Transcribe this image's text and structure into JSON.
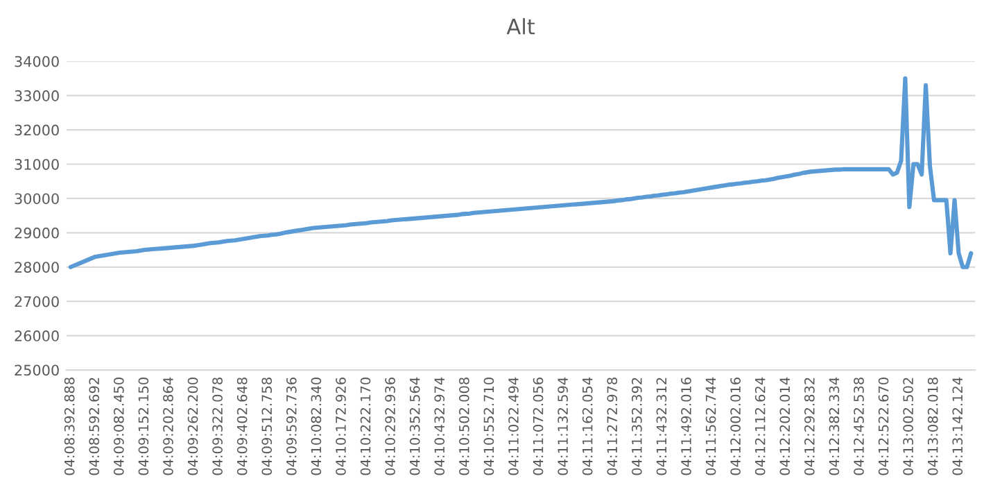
{
  "chart_data": {
    "type": "line",
    "title": "Alt",
    "categories": [
      "04:08:392.888",
      null,
      null,
      null,
      null,
      null,
      "04:08:592.692",
      null,
      null,
      null,
      null,
      null,
      "04:09:082.450",
      null,
      null,
      null,
      null,
      null,
      "04:09:152.150",
      null,
      null,
      null,
      null,
      null,
      "04:09:202.864",
      null,
      null,
      null,
      null,
      null,
      "04:09:262.200",
      null,
      null,
      null,
      null,
      null,
      "04:09:322.078",
      null,
      null,
      null,
      null,
      null,
      "04:09:402.648",
      null,
      null,
      null,
      null,
      null,
      "04:09:512.758",
      null,
      null,
      null,
      null,
      null,
      "04:09:592.736",
      null,
      null,
      null,
      null,
      null,
      "04:10:082.340",
      null,
      null,
      null,
      null,
      null,
      "04:10:172.926",
      null,
      null,
      null,
      null,
      null,
      "04:10:222.170",
      null,
      null,
      null,
      null,
      null,
      "04:10:292.936",
      null,
      null,
      null,
      null,
      null,
      "04:10:352.564",
      null,
      null,
      null,
      null,
      null,
      "04:10:432.974",
      null,
      null,
      null,
      null,
      null,
      "04:10:502.008",
      null,
      null,
      null,
      null,
      null,
      "04:10:552.710",
      null,
      null,
      null,
      null,
      null,
      "04:11:022.494",
      null,
      null,
      null,
      null,
      null,
      "04:11:072.056",
      null,
      null,
      null,
      null,
      null,
      "04:11:132.594",
      null,
      null,
      null,
      null,
      null,
      "04:11:162.054",
      null,
      null,
      null,
      null,
      null,
      "04:11:272.978",
      null,
      null,
      null,
      null,
      null,
      "04:11:352.392",
      null,
      null,
      null,
      null,
      null,
      "04:11:432.312",
      null,
      null,
      null,
      null,
      null,
      "04:11:492.016",
      null,
      null,
      null,
      null,
      null,
      "04:11:562.744",
      null,
      null,
      null,
      null,
      null,
      "04:12:002.016",
      null,
      null,
      null,
      null,
      null,
      "04:12:112.624",
      null,
      null,
      null,
      null,
      null,
      "04:12:202.014",
      null,
      null,
      null,
      null,
      null,
      "04:12:292.832",
      null,
      null,
      null,
      null,
      null,
      "04:12:382.334",
      null,
      null,
      null,
      null,
      null,
      "04:12:452.538",
      null,
      null,
      null,
      null,
      null,
      "04:12:522.670",
      null,
      null,
      null,
      null,
      null,
      "04:13:002.502",
      null,
      null,
      null,
      null,
      null,
      "04:13:082.018",
      null,
      null,
      null,
      null,
      null,
      "04:13:142.124",
      null,
      null,
      null
    ],
    "series": [
      {
        "color": "#5b9bd5",
        "values": [
          28000,
          28050,
          28100,
          28150,
          28200,
          28250,
          28300,
          28320,
          28340,
          28360,
          28380,
          28400,
          28420,
          28430,
          28440,
          28450,
          28460,
          28480,
          28500,
          28510,
          28520,
          28530,
          28540,
          28550,
          28560,
          28570,
          28580,
          28590,
          28600,
          28610,
          28620,
          28640,
          28660,
          28680,
          28700,
          28710,
          28720,
          28740,
          28760,
          28770,
          28780,
          28800,
          28820,
          28840,
          28860,
          28880,
          28900,
          28910,
          28920,
          28940,
          28950,
          28970,
          29000,
          29020,
          29040,
          29060,
          29080,
          29100,
          29120,
          29140,
          29150,
          29160,
          29170,
          29180,
          29190,
          29200,
          29210,
          29220,
          29240,
          29250,
          29260,
          29270,
          29280,
          29300,
          29310,
          29320,
          29330,
          29340,
          29360,
          29370,
          29380,
          29390,
          29400,
          29410,
          29420,
          29430,
          29440,
          29450,
          29460,
          29470,
          29480,
          29490,
          29500,
          29510,
          29520,
          29540,
          29550,
          29560,
          29580,
          29590,
          29600,
          29610,
          29620,
          29630,
          29640,
          29650,
          29660,
          29670,
          29680,
          29690,
          29700,
          29710,
          29720,
          29730,
          29740,
          29750,
          29760,
          29770,
          29780,
          29790,
          29800,
          29810,
          29820,
          29830,
          29840,
          29850,
          29860,
          29870,
          29880,
          29890,
          29900,
          29910,
          29920,
          29940,
          29950,
          29970,
          29980,
          30000,
          30020,
          30030,
          30050,
          30060,
          30080,
          30090,
          30110,
          30120,
          30140,
          30150,
          30170,
          30180,
          30200,
          30220,
          30240,
          30260,
          30280,
          30300,
          30320,
          30340,
          30360,
          30380,
          30400,
          30410,
          30430,
          30440,
          30460,
          30470,
          30490,
          30500,
          30520,
          30530,
          30550,
          30570,
          30600,
          30620,
          30640,
          30660,
          30690,
          30710,
          30740,
          30760,
          30780,
          30790,
          30800,
          30810,
          30820,
          30830,
          30840,
          30840,
          30850,
          30850,
          30850,
          30850,
          30850,
          30850,
          30850,
          30850,
          30850,
          30850,
          30850,
          30850,
          30700,
          30750,
          31100,
          33500,
          29750,
          31000,
          31000,
          30700,
          33300,
          30950,
          29950,
          29950,
          29950,
          29950,
          28400,
          29950,
          28400,
          28000,
          28000,
          28400
        ]
      }
    ],
    "ylim": [
      25000,
      34000
    ],
    "yticks": [
      25000,
      26000,
      27000,
      28000,
      29000,
      30000,
      31000,
      32000,
      33000,
      34000
    ],
    "grid": "y",
    "marker": "none",
    "line_style": "solid"
  }
}
